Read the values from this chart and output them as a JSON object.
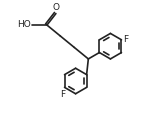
{
  "background": "#ffffff",
  "line_color": "#222222",
  "line_width": 1.2,
  "text_color": "#222222",
  "font_size": 6.5,
  "xlim": [
    -1.0,
    9.5
  ],
  "ylim": [
    -5.5,
    4.5
  ]
}
